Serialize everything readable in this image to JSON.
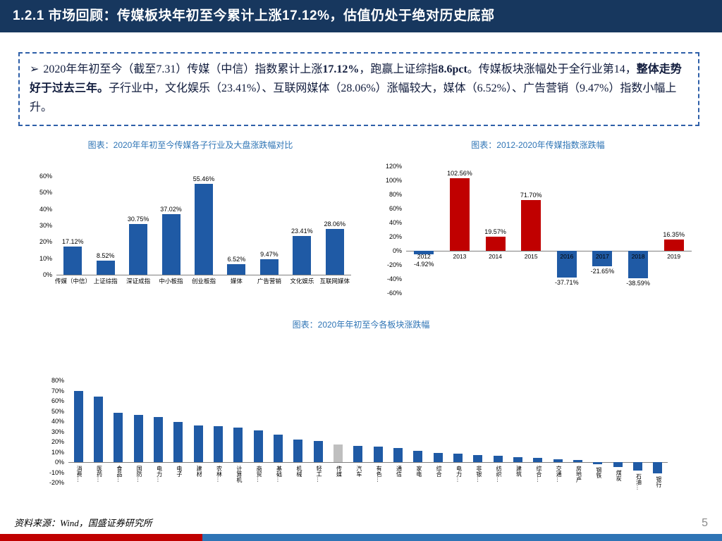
{
  "header": {
    "title": "1.2.1 市场回顾：传媒板块年初至今累计上涨17.12%，估值仍处于绝对历史底部"
  },
  "summary": {
    "bullet": "➢",
    "segments": [
      {
        "text": "2020年年初至今（截至7.31）传媒（中信）指数累计上涨",
        "bold": false
      },
      {
        "text": "17.12%",
        "bold": true
      },
      {
        "text": "，跑赢上证综指",
        "bold": false
      },
      {
        "text": "8.6pct",
        "bold": true
      },
      {
        "text": "。传媒板块涨幅处于全行业第14，",
        "bold": false
      },
      {
        "text": "整体走势好于过去三年。",
        "bold": true
      },
      {
        "text": "子行业中，文化娱乐（23.41%）、互联网媒体（28.06%）涨幅较大，媒体（6.52%）、广告营销（9.47%）指数小幅上升。",
        "bold": false
      }
    ]
  },
  "colors": {
    "header_bg": "#17375E",
    "accent_blue": "#2E74B5",
    "bar_blue": "#1F5AA5",
    "bar_red": "#C00000",
    "bar_gray": "#BFBFBF",
    "stripe_red": "#C00000",
    "stripe_blue": "#2E74B5",
    "border_blue": "#2E5FA8"
  },
  "chart_data": [
    {
      "type": "bar",
      "title": "图表：2020年年初至今传媒各子行业及大盘涨跌幅对比",
      "categories": [
        "传媒（中信）",
        "上证综指",
        "深证成指",
        "中小板指",
        "创业板指",
        "媒体",
        "广告营销",
        "文化娱乐",
        "互联网媒体"
      ],
      "values": [
        17.12,
        8.52,
        30.75,
        37.02,
        55.46,
        6.52,
        9.47,
        23.41,
        28.06
      ],
      "value_labels": [
        "17.12%",
        "8.52%",
        "30.75%",
        "37.02%",
        "55.46%",
        "6.52%",
        "9.47%",
        "23.41%",
        "28.06%"
      ],
      "bar_color": "#1F5AA5",
      "ylim": [
        0,
        60
      ],
      "ytick_step": 10,
      "grid": false,
      "legend": "none"
    },
    {
      "type": "bar",
      "title": "图表：2012-2020年传媒指数涨跌幅",
      "categories": [
        "2012",
        "2013",
        "2014",
        "2015",
        "2016",
        "2017",
        "2018",
        "2019"
      ],
      "values": [
        -4.92,
        102.56,
        19.57,
        71.7,
        -37.71,
        -21.65,
        -38.59,
        16.35
      ],
      "value_labels": [
        "-4.92%",
        "102.56%",
        "19.57%",
        "71.70%",
        "-37.71%",
        "-21.65%",
        "-38.59%",
        "16.35%"
      ],
      "colors": [
        "#1F5AA5",
        "#C00000",
        "#C00000",
        "#C00000",
        "#1F5AA5",
        "#1F5AA5",
        "#1F5AA5",
        "#C00000"
      ],
      "ylim": [
        -60,
        120
      ],
      "ytick_step": 20,
      "grid": false,
      "legend": "none"
    },
    {
      "type": "bar",
      "title": "图表：2020年年初至今各板块涨跌幅",
      "categories": [
        "消费…",
        "医药…",
        "食品…",
        "国防…",
        "电力…",
        "电子",
        "建材",
        "农林…",
        "计算机",
        "商贸…",
        "基础…",
        "机械",
        "轻工…",
        "传媒",
        "汽车",
        "有色…",
        "通信",
        "家电",
        "综合",
        "电力…",
        "非银…",
        "纺织…",
        "建筑",
        "综合…",
        "交通…",
        "房地产",
        "钢铁",
        "煤炭",
        "石油…",
        "银行"
      ],
      "values": [
        70,
        64,
        48,
        46,
        44,
        39,
        36,
        35,
        34,
        31,
        27,
        22,
        21,
        17,
        16,
        15,
        14,
        11,
        9,
        8,
        7,
        6,
        5,
        4,
        3,
        2,
        -2,
        -5,
        -8,
        -11
      ],
      "bar_color": "#1F5AA5",
      "highlight_index": 13,
      "highlight_color": "#BFBFBF",
      "ylim": [
        -20,
        80
      ],
      "ytick_step": 10,
      "grid": false,
      "legend": "none"
    }
  ],
  "footer": {
    "source": "资料来源：Wind，国盛证券研究所",
    "page_number": "5"
  }
}
